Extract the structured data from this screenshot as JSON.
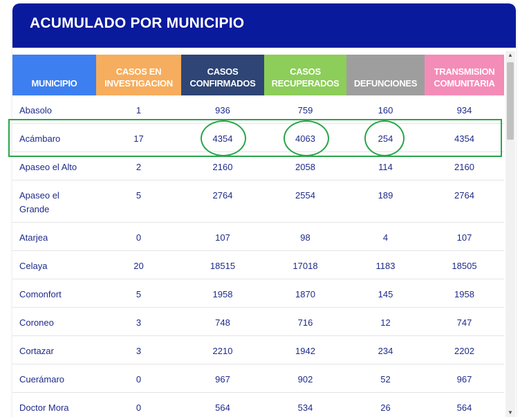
{
  "header": {
    "title": "ACUMULADO POR MUNICIPIO"
  },
  "colors": {
    "header_bg": "#0a1a9c",
    "highlight": "#2aa54a",
    "col_municipio": "#3d7ff0",
    "col_investigacion": "#f6ad5e",
    "col_confirmados": "#2e4575",
    "col_recuperados": "#8dcd5a",
    "col_defunciones": "#9e9e9e",
    "col_transmision": "#f48cb8"
  },
  "columns": [
    {
      "key": "municipio",
      "lines": [
        "MUNICIPIO"
      ]
    },
    {
      "key": "investigacion",
      "lines": [
        "CASOS EN",
        "INVESTIGACION"
      ]
    },
    {
      "key": "confirmados",
      "lines": [
        "CASOS",
        "CONFIRMADOS"
      ]
    },
    {
      "key": "recuperados",
      "lines": [
        "CASOS",
        "RECUPERADOS"
      ]
    },
    {
      "key": "defunciones",
      "lines": [
        "DEFUNCIONES"
      ]
    },
    {
      "key": "transmision",
      "lines": [
        "TRANSMISION",
        "COMUNITARIA"
      ]
    }
  ],
  "rows": [
    {
      "municipio": "Abasolo",
      "investigacion": "1",
      "confirmados": "936",
      "recuperados": "759",
      "defunciones": "160",
      "transmision": "934"
    },
    {
      "municipio": "Acámbaro",
      "investigacion": "17",
      "confirmados": "4354",
      "recuperados": "4063",
      "defunciones": "254",
      "transmision": "4354"
    },
    {
      "municipio": "Apaseo el Alto",
      "investigacion": "2",
      "confirmados": "2160",
      "recuperados": "2058",
      "defunciones": "114",
      "transmision": "2160"
    },
    {
      "municipio": "Apaseo el Grande",
      "investigacion": "5",
      "confirmados": "2764",
      "recuperados": "2554",
      "defunciones": "189",
      "transmision": "2764"
    },
    {
      "municipio": "Atarjea",
      "investigacion": "0",
      "confirmados": "107",
      "recuperados": "98",
      "defunciones": "4",
      "transmision": "107"
    },
    {
      "municipio": "Celaya",
      "investigacion": "20",
      "confirmados": "18515",
      "recuperados": "17018",
      "defunciones": "1183",
      "transmision": "18505"
    },
    {
      "municipio": "Comonfort",
      "investigacion": "5",
      "confirmados": "1958",
      "recuperados": "1870",
      "defunciones": "145",
      "transmision": "1958"
    },
    {
      "municipio": "Coroneo",
      "investigacion": "3",
      "confirmados": "748",
      "recuperados": "716",
      "defunciones": "12",
      "transmision": "747"
    },
    {
      "municipio": "Cortazar",
      "investigacion": "3",
      "confirmados": "2210",
      "recuperados": "1942",
      "defunciones": "234",
      "transmision": "2202"
    },
    {
      "municipio": "Cuerámaro",
      "investigacion": "0",
      "confirmados": "967",
      "recuperados": "902",
      "defunciones": "52",
      "transmision": "967"
    },
    {
      "municipio": "Doctor Mora",
      "investigacion": "0",
      "confirmados": "564",
      "recuperados": "534",
      "defunciones": "26",
      "transmision": "564"
    }
  ]
}
